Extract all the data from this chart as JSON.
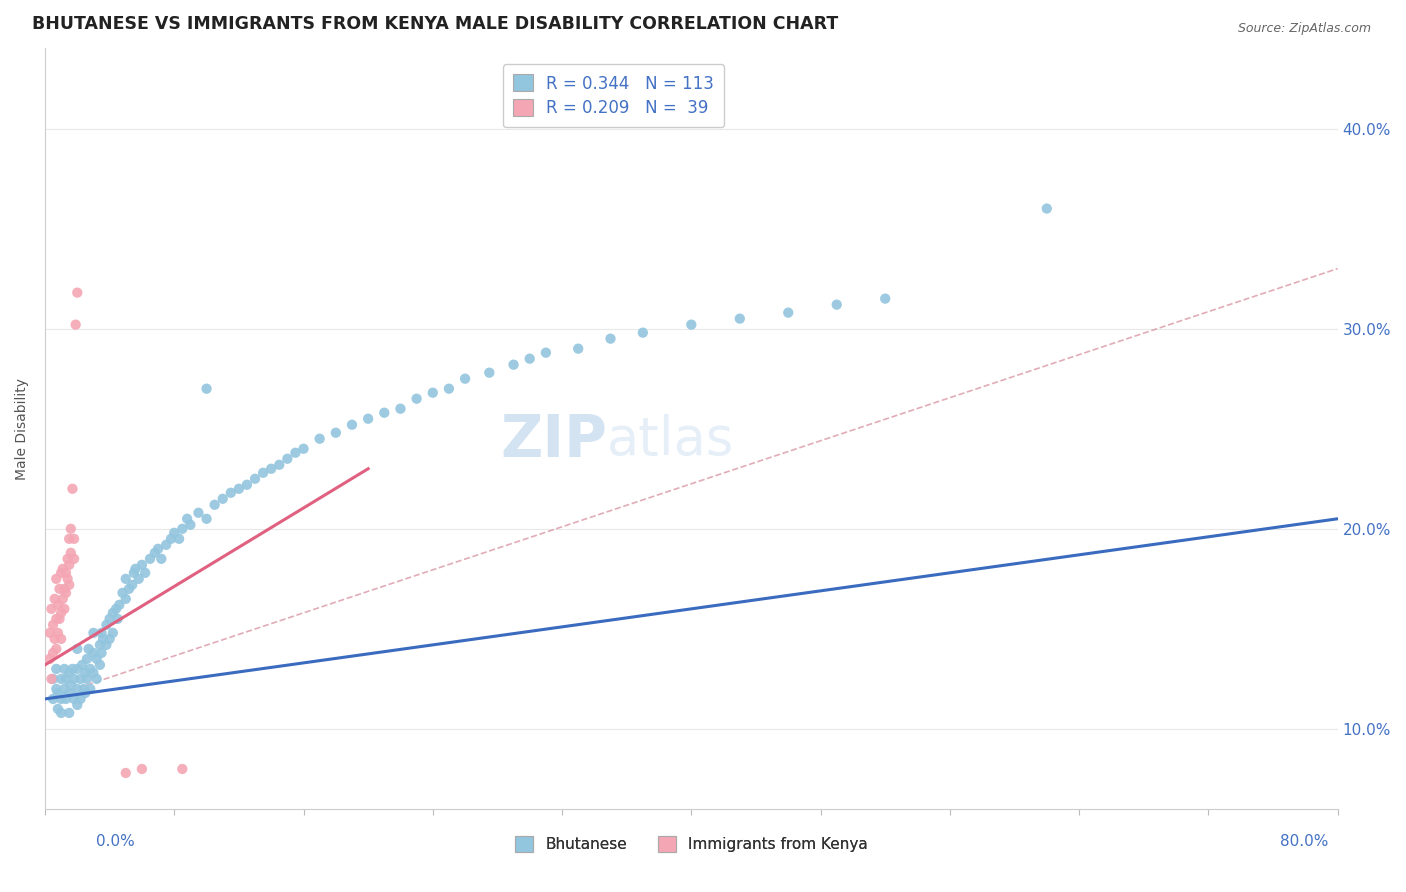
{
  "title": "BHUTANESE VS IMMIGRANTS FROM KENYA MALE DISABILITY CORRELATION CHART",
  "source": "Source: ZipAtlas.com",
  "ylabel": "Male Disability",
  "xlim": [
    0.0,
    0.8
  ],
  "ylim": [
    0.06,
    0.44
  ],
  "legend_r1": "R = 0.344",
  "legend_n1": "N = 113",
  "legend_r2": "R = 0.209",
  "legend_n2": "N = 39",
  "blue_color": "#92c5de",
  "pink_color": "#f4a6b4",
  "blue_line_color": "#3a6bbf",
  "pink_line_color": "#e06080",
  "dashed_color": "#d4899a",
  "bg_color": "#ffffff",
  "grid_color": "#e8e8e8",
  "tick_color": "#4472c4",
  "title_fontsize": 12.5,
  "axis_label_fontsize": 10,
  "tick_fontsize": 11,
  "blue_scatter": [
    [
      0.005,
      0.115
    ],
    [
      0.005,
      0.125
    ],
    [
      0.007,
      0.13
    ],
    [
      0.007,
      0.12
    ],
    [
      0.008,
      0.11
    ],
    [
      0.008,
      0.118
    ],
    [
      0.01,
      0.115
    ],
    [
      0.01,
      0.125
    ],
    [
      0.01,
      0.108
    ],
    [
      0.012,
      0.12
    ],
    [
      0.012,
      0.13
    ],
    [
      0.013,
      0.115
    ],
    [
      0.013,
      0.125
    ],
    [
      0.015,
      0.118
    ],
    [
      0.015,
      0.128
    ],
    [
      0.015,
      0.108
    ],
    [
      0.016,
      0.122
    ],
    [
      0.017,
      0.13
    ],
    [
      0.018,
      0.115
    ],
    [
      0.018,
      0.125
    ],
    [
      0.02,
      0.12
    ],
    [
      0.02,
      0.13
    ],
    [
      0.02,
      0.14
    ],
    [
      0.02,
      0.112
    ],
    [
      0.022,
      0.125
    ],
    [
      0.022,
      0.115
    ],
    [
      0.023,
      0.132
    ],
    [
      0.024,
      0.12
    ],
    [
      0.025,
      0.128
    ],
    [
      0.025,
      0.118
    ],
    [
      0.026,
      0.135
    ],
    [
      0.026,
      0.125
    ],
    [
      0.027,
      0.14
    ],
    [
      0.028,
      0.13
    ],
    [
      0.028,
      0.12
    ],
    [
      0.03,
      0.138
    ],
    [
      0.03,
      0.128
    ],
    [
      0.03,
      0.148
    ],
    [
      0.032,
      0.135
    ],
    [
      0.032,
      0.125
    ],
    [
      0.034,
      0.142
    ],
    [
      0.034,
      0.132
    ],
    [
      0.035,
      0.148
    ],
    [
      0.035,
      0.138
    ],
    [
      0.036,
      0.145
    ],
    [
      0.038,
      0.152
    ],
    [
      0.038,
      0.142
    ],
    [
      0.04,
      0.155
    ],
    [
      0.04,
      0.145
    ],
    [
      0.042,
      0.158
    ],
    [
      0.042,
      0.148
    ],
    [
      0.044,
      0.16
    ],
    [
      0.045,
      0.155
    ],
    [
      0.046,
      0.162
    ],
    [
      0.048,
      0.168
    ],
    [
      0.05,
      0.165
    ],
    [
      0.05,
      0.175
    ],
    [
      0.052,
      0.17
    ],
    [
      0.054,
      0.172
    ],
    [
      0.055,
      0.178
    ],
    [
      0.056,
      0.18
    ],
    [
      0.058,
      0.175
    ],
    [
      0.06,
      0.182
    ],
    [
      0.062,
      0.178
    ],
    [
      0.065,
      0.185
    ],
    [
      0.068,
      0.188
    ],
    [
      0.07,
      0.19
    ],
    [
      0.072,
      0.185
    ],
    [
      0.075,
      0.192
    ],
    [
      0.078,
      0.195
    ],
    [
      0.08,
      0.198
    ],
    [
      0.083,
      0.195
    ],
    [
      0.085,
      0.2
    ],
    [
      0.088,
      0.205
    ],
    [
      0.09,
      0.202
    ],
    [
      0.095,
      0.208
    ],
    [
      0.1,
      0.205
    ],
    [
      0.105,
      0.212
    ],
    [
      0.11,
      0.215
    ],
    [
      0.115,
      0.218
    ],
    [
      0.12,
      0.22
    ],
    [
      0.125,
      0.222
    ],
    [
      0.13,
      0.225
    ],
    [
      0.135,
      0.228
    ],
    [
      0.14,
      0.23
    ],
    [
      0.145,
      0.232
    ],
    [
      0.15,
      0.235
    ],
    [
      0.155,
      0.238
    ],
    [
      0.16,
      0.24
    ],
    [
      0.17,
      0.245
    ],
    [
      0.18,
      0.248
    ],
    [
      0.19,
      0.252
    ],
    [
      0.2,
      0.255
    ],
    [
      0.21,
      0.258
    ],
    [
      0.22,
      0.26
    ],
    [
      0.23,
      0.265
    ],
    [
      0.24,
      0.268
    ],
    [
      0.25,
      0.27
    ],
    [
      0.26,
      0.275
    ],
    [
      0.275,
      0.278
    ],
    [
      0.29,
      0.282
    ],
    [
      0.3,
      0.285
    ],
    [
      0.31,
      0.288
    ],
    [
      0.33,
      0.29
    ],
    [
      0.35,
      0.295
    ],
    [
      0.37,
      0.298
    ],
    [
      0.4,
      0.302
    ],
    [
      0.43,
      0.305
    ],
    [
      0.46,
      0.308
    ],
    [
      0.49,
      0.312
    ],
    [
      0.52,
      0.315
    ],
    [
      0.1,
      0.27
    ],
    [
      0.62,
      0.36
    ]
  ],
  "pink_scatter": [
    [
      0.003,
      0.135
    ],
    [
      0.003,
      0.148
    ],
    [
      0.004,
      0.125
    ],
    [
      0.004,
      0.16
    ],
    [
      0.005,
      0.138
    ],
    [
      0.005,
      0.152
    ],
    [
      0.006,
      0.145
    ],
    [
      0.006,
      0.165
    ],
    [
      0.007,
      0.14
    ],
    [
      0.007,
      0.175
    ],
    [
      0.007,
      0.155
    ],
    [
      0.008,
      0.148
    ],
    [
      0.008,
      0.162
    ],
    [
      0.009,
      0.155
    ],
    [
      0.009,
      0.17
    ],
    [
      0.01,
      0.158
    ],
    [
      0.01,
      0.178
    ],
    [
      0.01,
      0.145
    ],
    [
      0.011,
      0.165
    ],
    [
      0.011,
      0.18
    ],
    [
      0.012,
      0.16
    ],
    [
      0.012,
      0.17
    ],
    [
      0.013,
      0.168
    ],
    [
      0.013,
      0.178
    ],
    [
      0.014,
      0.175
    ],
    [
      0.014,
      0.185
    ],
    [
      0.015,
      0.182
    ],
    [
      0.015,
      0.195
    ],
    [
      0.015,
      0.172
    ],
    [
      0.016,
      0.188
    ],
    [
      0.016,
      0.2
    ],
    [
      0.017,
      0.22
    ],
    [
      0.018,
      0.195
    ],
    [
      0.018,
      0.185
    ],
    [
      0.019,
      0.302
    ],
    [
      0.02,
      0.318
    ],
    [
      0.05,
      0.078
    ],
    [
      0.06,
      0.08
    ],
    [
      0.085,
      0.08
    ]
  ],
  "blue_regline": [
    0.0,
    0.8,
    0.115,
    0.205
  ],
  "pink_regline": [
    0.0,
    0.2,
    0.132,
    0.23
  ],
  "dashed_line": [
    0.0,
    0.8,
    0.115,
    0.33
  ],
  "watermark": "ZIPatlas",
  "watermark_zip": "ZIP",
  "watermark_atlas": "atlas"
}
